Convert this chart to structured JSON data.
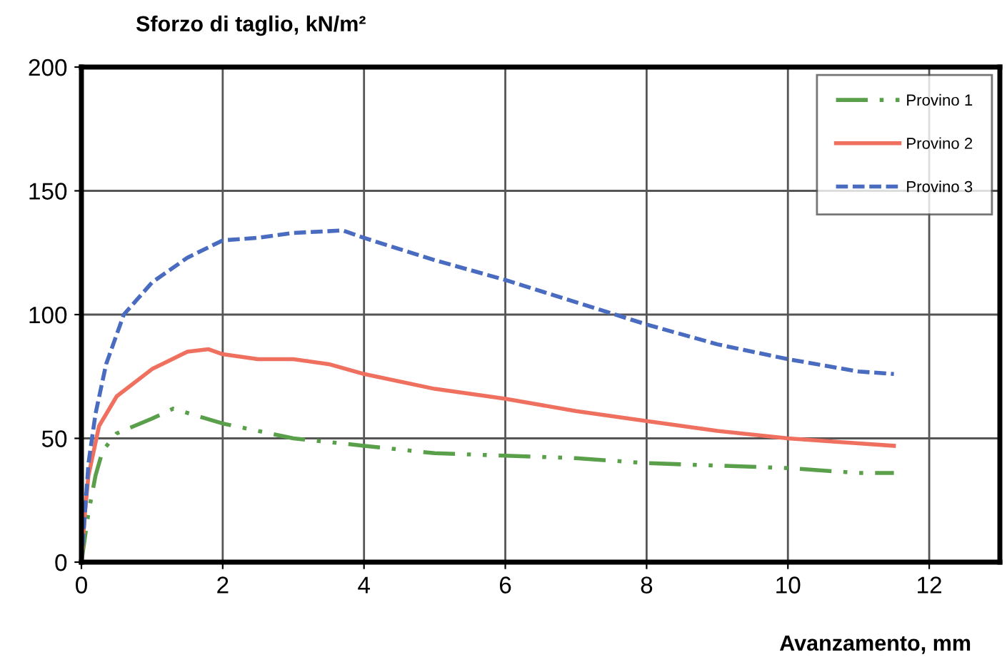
{
  "chart_data": {
    "type": "line",
    "ylabel": "Sforzo di taglio, kN/m²",
    "xlabel": "Avanzamento, mm",
    "xlim": [
      0,
      13
    ],
    "xticks": [
      0,
      2,
      4,
      6,
      8,
      10,
      12
    ],
    "ylim": [
      0,
      200
    ],
    "yticks": [
      0,
      50,
      100,
      150,
      200
    ],
    "grid": true,
    "legend": "top right",
    "marker": "none",
    "series": [
      {
        "name": "Provino 1",
        "color": "#5aa04a",
        "line_style": "dashdot",
        "x": [
          0,
          0.1,
          0.2,
          0.3,
          0.5,
          1,
          1.3,
          2,
          3,
          4,
          5,
          6,
          7,
          8,
          9,
          10,
          11,
          11.5
        ],
        "values": [
          0,
          20,
          35,
          45,
          52,
          58,
          62,
          56,
          50,
          47,
          44,
          43,
          42,
          40,
          39,
          38,
          36,
          36
        ]
      },
      {
        "name": "Provino 2",
        "color": "#f07060",
        "line_style": "solid",
        "x": [
          0,
          0.05,
          0.1,
          0.25,
          0.5,
          1,
          1.5,
          1.8,
          2,
          2.5,
          3,
          3.5,
          4,
          5,
          6,
          7,
          8,
          9,
          10,
          11,
          11.5
        ],
        "values": [
          0,
          20,
          35,
          55,
          67,
          78,
          85,
          86,
          84,
          82,
          82,
          80,
          76,
          70,
          66,
          61,
          57,
          53,
          50,
          48,
          47
        ]
      },
      {
        "name": "Provino 3",
        "color": "#4a6cc0",
        "line_style": "dashed",
        "x": [
          0,
          0.1,
          0.2,
          0.35,
          0.6,
          1,
          1.5,
          2,
          2.5,
          3,
          3.7,
          4,
          5,
          6,
          7,
          8,
          9,
          10,
          11,
          11.5
        ],
        "values": [
          0,
          40,
          60,
          80,
          100,
          113,
          123,
          130,
          131,
          133,
          134,
          131,
          122,
          114,
          105,
          96,
          88,
          82,
          77,
          76
        ]
      }
    ]
  }
}
